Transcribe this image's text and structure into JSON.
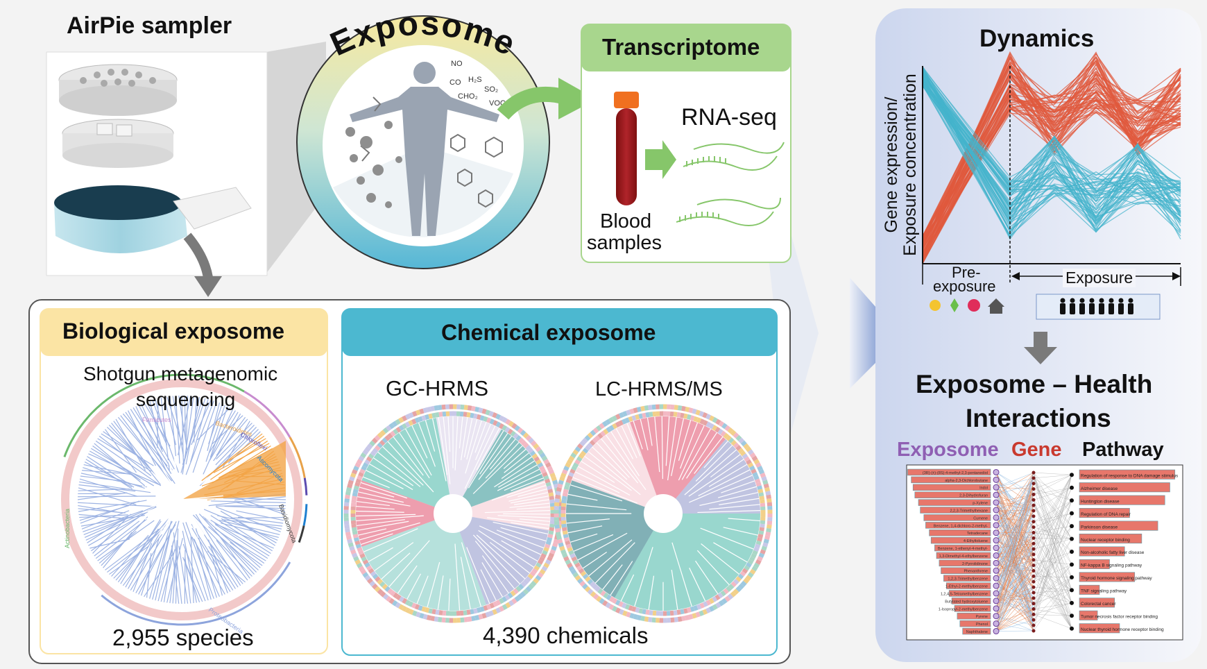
{
  "sampler": {
    "title": "AirPie sampler"
  },
  "exposome_circle": {
    "title": "Exposome",
    "chemical_labels": [
      "NO",
      "CO",
      "H₂S",
      "SO₂",
      "CHO₂",
      "VOC"
    ]
  },
  "transcriptome": {
    "header": "Transcriptome",
    "method": "RNA-seq",
    "sample_label_line1": "Blood",
    "sample_label_line2": "samples"
  },
  "biological": {
    "header": "Biological exposome",
    "method_line1": "Shotgun metagenomic",
    "method_line2": "sequencing",
    "count": "2,955 species",
    "clade_labels": [
      "Firmicutes",
      "Bacteroidetes",
      "Chloroflexi",
      "Actinobacteria",
      "Proteobacteria",
      "Ascomycota",
      "Basidiomycota"
    ]
  },
  "chemical": {
    "header": "Chemical exposome",
    "method_left": "GC-HRMS",
    "method_right": "LC-HRMS/MS",
    "count": "4,390 chemicals"
  },
  "dynamics": {
    "title": "Dynamics",
    "ylabel_line1": "Gene expression/",
    "ylabel_line2": "Exposure concentration",
    "pre_line1": "Pre-",
    "pre_line2": "exposure",
    "exposure_label": "Exposure"
  },
  "interactions": {
    "title_line1": "Exposome – Health",
    "title_line2": "Interactions",
    "col_exposome": "Exposome",
    "col_gene": "Gene",
    "col_pathway": "Pathway",
    "exposome_items": [
      "(3R)-(±)-(8S)-4-methyl-2,3-pentanediol",
      "alpha-2,3-Dichlorobutane",
      "Indol",
      "2,3-Dihydrofuran",
      "p-Xylene",
      "2,2,3-Trimethylhexane",
      "Cumene",
      "Benzene, 1,4-dichloro-2-methyl-",
      "Tetradecane",
      "4-Ethyltoluene",
      "Benzene, 1-ethenyl-4-methyl-",
      "1,3-Dimethyl-4-ethylbenzene",
      "2-Pyrrolidinone",
      "Phenanthrene",
      "1,2,3-Trimethylbenzene",
      "1-Ethyl-2-methylbenzene",
      "1,2,4,5-Tetramethylbenzene",
      "Butylated hydroxytoluene",
      "1-Isopropyl-2-methylbenzene",
      "Pyrene",
      "Phenol",
      "Naphthalene"
    ],
    "exposome_values": [
      0.92,
      0.88,
      0.86,
      0.84,
      0.8,
      0.78,
      0.74,
      0.72,
      0.68,
      0.66,
      0.62,
      0.6,
      0.57,
      0.55,
      0.52,
      0.49,
      0.46,
      0.43,
      0.4,
      0.37,
      0.34,
      0.31
    ],
    "pathway_items": [
      "Regulation of response to DNA damage stimulus",
      "Alzheimer disease",
      "Huntington disease",
      "Regulation of DNA repair",
      "Parkinson disease",
      "Nuclear receptor binding",
      "Non-alcoholic fatty liver disease",
      "NF-kappa B signaling pathway",
      "Thyroid hormone signaling pathway",
      "TNF signaling pathway",
      "Colorectal cancer",
      "Tumor necrosis factor receptor binding",
      "Nuclear thyroid hormone receptor binding"
    ],
    "pathway_values": [
      0.95,
      0.9,
      0.85,
      0.5,
      0.78,
      0.62,
      0.45,
      0.3,
      0.55,
      0.2,
      0.35,
      0.18,
      0.4
    ]
  },
  "colors": {
    "red_series": "#e05a3e",
    "blue_series": "#44b3cc",
    "biological_header": "#fbe4a4",
    "chemical_header": "#4cb8d0",
    "transcriptome_header": "#a8d68d",
    "arrow_green": "#86c66a",
    "arrow_gray": "#7a7a7a",
    "exposome_purple": "#8f5fb3",
    "gene_red": "#c9392e"
  }
}
